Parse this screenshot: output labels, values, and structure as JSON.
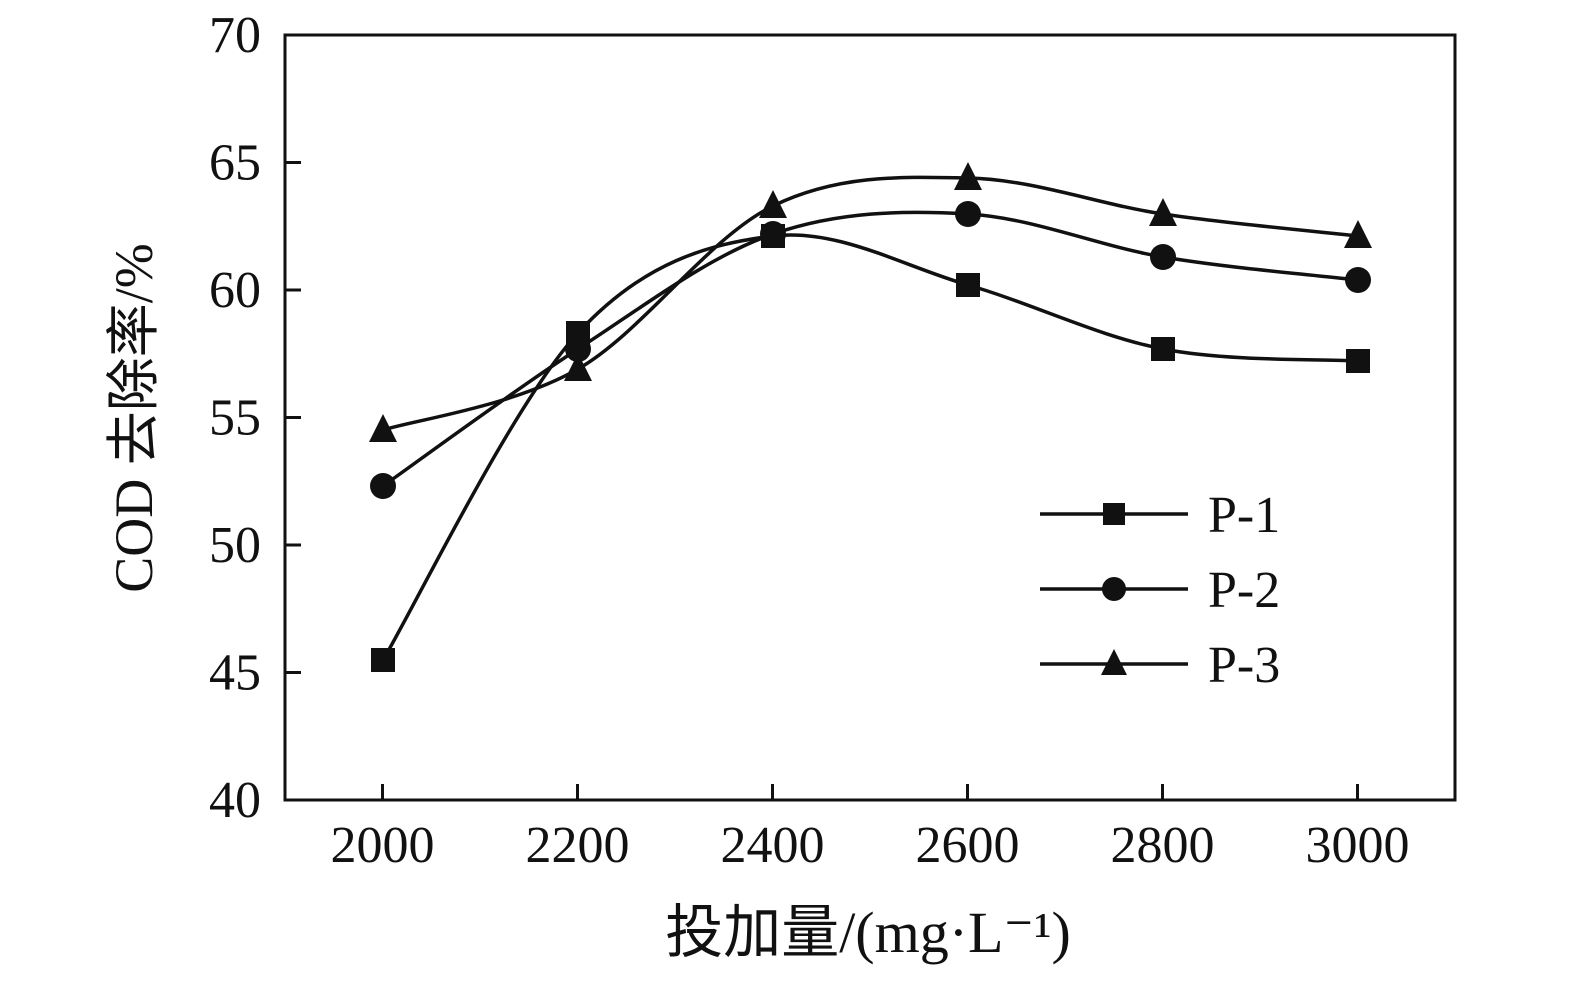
{
  "chart_data": {
    "type": "line",
    "title": "",
    "xlabel": "投加量/(mg·L⁻¹)",
    "ylabel": "COD 去除率/%",
    "x": [
      2000,
      2200,
      2400,
      2600,
      2800,
      3000
    ],
    "series": [
      {
        "name": "P-1",
        "marker": "square",
        "values": [
          45.5,
          58.3,
          62.1,
          60.2,
          57.7,
          57.2
        ]
      },
      {
        "name": "P-2",
        "marker": "circle",
        "values": [
          52.3,
          57.7,
          62.2,
          63.0,
          61.3,
          60.4
        ]
      },
      {
        "name": "P-3",
        "marker": "triangle",
        "values": [
          54.5,
          56.9,
          63.3,
          64.4,
          63.0,
          62.1
        ]
      }
    ],
    "xlim": [
      1900,
      3100
    ],
    "ylim": [
      40,
      70
    ],
    "xticks": [
      2000,
      2200,
      2400,
      2600,
      2800,
      3000
    ],
    "yticks": [
      40,
      45,
      50,
      55,
      60,
      65,
      70
    ],
    "grid": false,
    "legend_position": "inside-right-middle",
    "ink_color": "#111111",
    "background_color": "#ffffff"
  }
}
